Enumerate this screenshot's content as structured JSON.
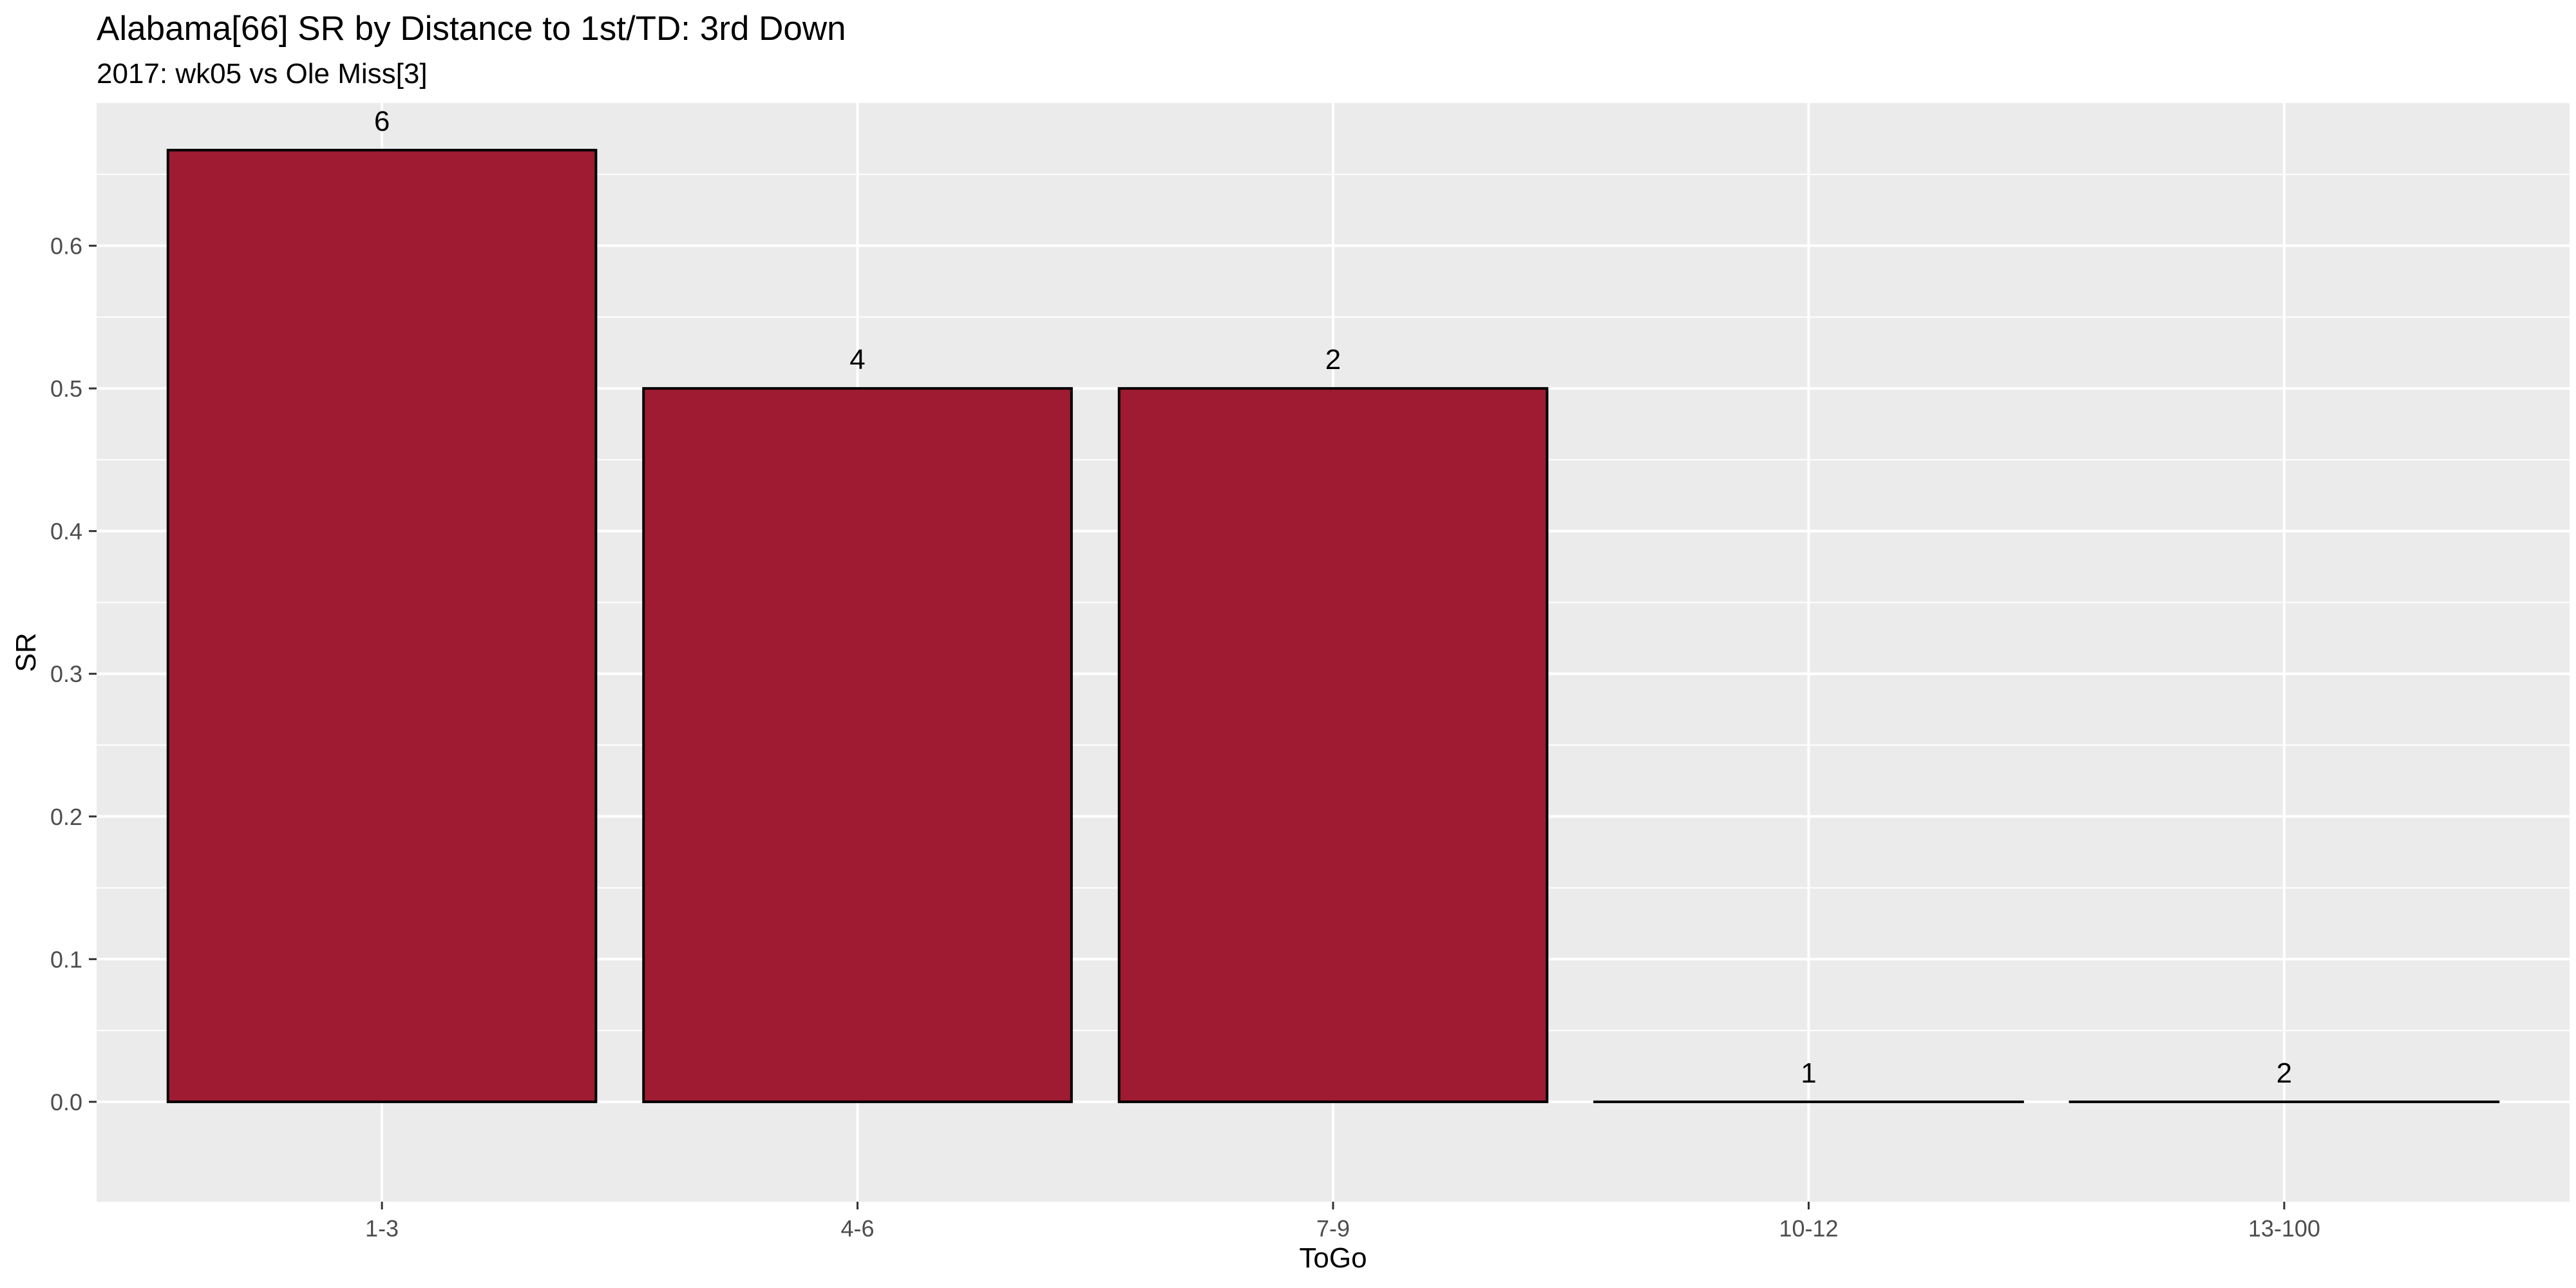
{
  "chart_data": {
    "type": "bar",
    "title": "Alabama[66] SR by Distance to 1st/TD: 3rd Down",
    "subtitle": "2017: wk05 vs Ole Miss[3]",
    "xlabel": "ToGo",
    "ylabel": "SR",
    "categories": [
      "1-3",
      "4-6",
      "7-9",
      "10-12",
      "13-100"
    ],
    "values": [
      0.667,
      0.5,
      0.5,
      0.0,
      0.0
    ],
    "data_labels": [
      "6",
      "4",
      "2",
      "1",
      "2"
    ],
    "ylim": [
      -0.07,
      0.7
    ],
    "yticks": [
      0.0,
      0.1,
      0.2,
      0.3,
      0.4,
      0.5,
      0.6
    ],
    "ytick_labels": [
      "0.0",
      "0.1",
      "0.2",
      "0.3",
      "0.4",
      "0.5",
      "0.6"
    ],
    "grid": true,
    "legend": "none",
    "colors": {
      "bar_fill": "#9E1B32",
      "bar_stroke": "#000000",
      "panel_bg": "#EBEBEB",
      "grid": "#FFFFFF",
      "axis_text": "#4D4D4D"
    }
  }
}
